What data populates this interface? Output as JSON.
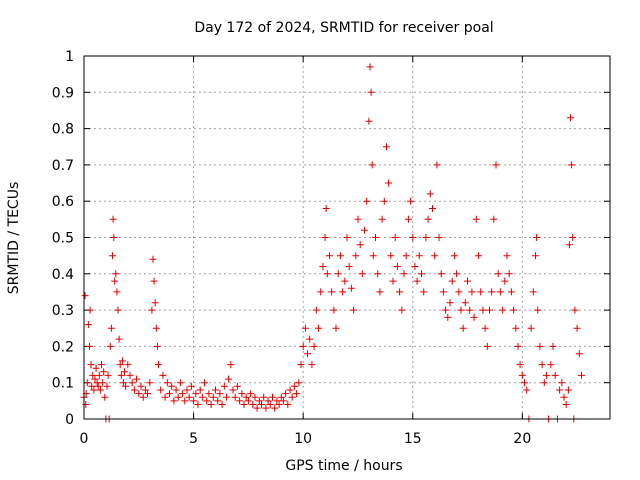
{
  "chart_data": {
    "type": "scatter",
    "title": "Day 172 of 2024, SRMTID for receiver poal",
    "xlabel": "GPS time / hours",
    "ylabel": "SRMTID / TECUs",
    "xlim": [
      0,
      24
    ],
    "ylim": [
      0,
      1
    ],
    "x_ticks": [
      0,
      5,
      10,
      15,
      20
    ],
    "x_tick_labels": [
      "0",
      "5",
      "10",
      "15",
      "20"
    ],
    "y_ticks": [
      0,
      0.1,
      0.2,
      0.3,
      0.4,
      0.5,
      0.6,
      0.7,
      0.8,
      0.9,
      1
    ],
    "y_tick_labels": [
      "0",
      "0.1",
      "0.2",
      "0.3",
      "0.4",
      "0.5",
      "0.6",
      "0.7",
      "0.8",
      "0.9",
      "1"
    ],
    "grid": true,
    "marker": "plus",
    "color": "#e00000",
    "series": [
      {
        "name": "SRMTID",
        "points": [
          [
            0.0,
            0.06
          ],
          [
            0.05,
            0.34
          ],
          [
            0.08,
            0.04
          ],
          [
            0.1,
            0.07
          ],
          [
            0.15,
            0.1
          ],
          [
            0.2,
            0.26
          ],
          [
            0.25,
            0.2
          ],
          [
            0.28,
            0.3
          ],
          [
            0.32,
            0.15
          ],
          [
            0.35,
            0.09
          ],
          [
            0.4,
            0.12
          ],
          [
            0.45,
            0.08
          ],
          [
            0.5,
            0.11
          ],
          [
            0.55,
            0.14
          ],
          [
            0.6,
            0.1
          ],
          [
            0.65,
            0.09
          ],
          [
            0.7,
            0.12
          ],
          [
            0.75,
            0.08
          ],
          [
            0.8,
            0.15
          ],
          [
            0.85,
            0.1
          ],
          [
            0.9,
            0.13
          ],
          [
            0.95,
            0.06
          ],
          [
            1.0,
            0.0
          ],
          [
            1.05,
            0.09
          ],
          [
            1.1,
            0.12
          ],
          [
            1.15,
            0.0
          ],
          [
            1.2,
            0.2
          ],
          [
            1.25,
            0.25
          ],
          [
            1.3,
            0.45
          ],
          [
            1.33,
            0.55
          ],
          [
            1.36,
            0.5
          ],
          [
            1.4,
            0.38
          ],
          [
            1.45,
            0.4
          ],
          [
            1.5,
            0.35
          ],
          [
            1.55,
            0.3
          ],
          [
            1.6,
            0.22
          ],
          [
            1.65,
            0.15
          ],
          [
            1.7,
            0.12
          ],
          [
            1.75,
            0.16
          ],
          [
            1.8,
            0.1
          ],
          [
            1.85,
            0.13
          ],
          [
            1.9,
            0.09
          ],
          [
            2.0,
            0.15
          ],
          [
            2.1,
            0.12
          ],
          [
            2.2,
            0.1
          ],
          [
            2.3,
            0.08
          ],
          [
            2.4,
            0.11
          ],
          [
            2.5,
            0.07
          ],
          [
            2.6,
            0.09
          ],
          [
            2.7,
            0.06
          ],
          [
            2.8,
            0.08
          ],
          [
            2.9,
            0.07
          ],
          [
            3.0,
            0.1
          ],
          [
            3.1,
            0.3
          ],
          [
            3.15,
            0.44
          ],
          [
            3.2,
            0.38
          ],
          [
            3.25,
            0.32
          ],
          [
            3.3,
            0.25
          ],
          [
            3.35,
            0.2
          ],
          [
            3.4,
            0.15
          ],
          [
            3.5,
            0.08
          ],
          [
            3.6,
            0.12
          ],
          [
            3.7,
            0.06
          ],
          [
            3.8,
            0.1
          ],
          [
            3.9,
            0.07
          ],
          [
            4.0,
            0.09
          ],
          [
            4.1,
            0.05
          ],
          [
            4.2,
            0.08
          ],
          [
            4.3,
            0.06
          ],
          [
            4.4,
            0.1
          ],
          [
            4.5,
            0.07
          ],
          [
            4.6,
            0.05
          ],
          [
            4.7,
            0.08
          ],
          [
            4.8,
            0.06
          ],
          [
            4.9,
            0.09
          ],
          [
            5.0,
            0.05
          ],
          [
            5.1,
            0.07
          ],
          [
            5.2,
            0.04
          ],
          [
            5.3,
            0.08
          ],
          [
            5.4,
            0.06
          ],
          [
            5.5,
            0.1
          ],
          [
            5.6,
            0.05
          ],
          [
            5.7,
            0.07
          ],
          [
            5.8,
            0.04
          ],
          [
            5.9,
            0.06
          ],
          [
            6.0,
            0.08
          ],
          [
            6.1,
            0.05
          ],
          [
            6.2,
            0.07
          ],
          [
            6.3,
            0.04
          ],
          [
            6.4,
            0.09
          ],
          [
            6.5,
            0.06
          ],
          [
            6.6,
            0.11
          ],
          [
            6.7,
            0.15
          ],
          [
            6.8,
            0.08
          ],
          [
            6.9,
            0.06
          ],
          [
            7.0,
            0.09
          ],
          [
            7.1,
            0.05
          ],
          [
            7.2,
            0.07
          ],
          [
            7.3,
            0.04
          ],
          [
            7.4,
            0.06
          ],
          [
            7.5,
            0.05
          ],
          [
            7.6,
            0.07
          ],
          [
            7.7,
            0.04
          ],
          [
            7.8,
            0.06
          ],
          [
            7.9,
            0.03
          ],
          [
            8.0,
            0.05
          ],
          [
            8.1,
            0.04
          ],
          [
            8.2,
            0.06
          ],
          [
            8.3,
            0.03
          ],
          [
            8.4,
            0.05
          ],
          [
            8.5,
            0.04
          ],
          [
            8.6,
            0.06
          ],
          [
            8.7,
            0.03
          ],
          [
            8.8,
            0.05
          ],
          [
            8.9,
            0.04
          ],
          [
            9.0,
            0.06
          ],
          [
            9.1,
            0.05
          ],
          [
            9.2,
            0.07
          ],
          [
            9.3,
            0.04
          ],
          [
            9.4,
            0.08
          ],
          [
            9.5,
            0.06
          ],
          [
            9.6,
            0.09
          ],
          [
            9.7,
            0.07
          ],
          [
            9.8,
            0.1
          ],
          [
            9.9,
            0.15
          ],
          [
            10.0,
            0.2
          ],
          [
            10.1,
            0.25
          ],
          [
            10.2,
            0.18
          ],
          [
            10.3,
            0.22
          ],
          [
            10.4,
            0.15
          ],
          [
            10.5,
            0.2
          ],
          [
            10.6,
            0.3
          ],
          [
            10.7,
            0.25
          ],
          [
            10.8,
            0.35
          ],
          [
            10.9,
            0.42
          ],
          [
            11.0,
            0.5
          ],
          [
            11.05,
            0.58
          ],
          [
            11.1,
            0.4
          ],
          [
            11.2,
            0.45
          ],
          [
            11.3,
            0.35
          ],
          [
            11.4,
            0.3
          ],
          [
            11.5,
            0.25
          ],
          [
            11.6,
            0.4
          ],
          [
            11.7,
            0.45
          ],
          [
            11.8,
            0.35
          ],
          [
            11.9,
            0.38
          ],
          [
            12.0,
            0.5
          ],
          [
            12.1,
            0.42
          ],
          [
            12.2,
            0.36
          ],
          [
            12.3,
            0.3
          ],
          [
            12.4,
            0.45
          ],
          [
            12.5,
            0.55
          ],
          [
            12.6,
            0.48
          ],
          [
            12.7,
            0.4
          ],
          [
            12.8,
            0.52
          ],
          [
            12.9,
            0.6
          ],
          [
            13.0,
            0.82
          ],
          [
            13.05,
            0.97
          ],
          [
            13.1,
            0.9
          ],
          [
            13.15,
            0.7
          ],
          [
            13.2,
            0.45
          ],
          [
            13.3,
            0.5
          ],
          [
            13.4,
            0.4
          ],
          [
            13.5,
            0.35
          ],
          [
            13.6,
            0.55
          ],
          [
            13.7,
            0.6
          ],
          [
            13.8,
            0.75
          ],
          [
            13.9,
            0.65
          ],
          [
            14.0,
            0.45
          ],
          [
            14.1,
            0.38
          ],
          [
            14.2,
            0.5
          ],
          [
            14.3,
            0.42
          ],
          [
            14.4,
            0.35
          ],
          [
            14.5,
            0.3
          ],
          [
            14.6,
            0.4
          ],
          [
            14.7,
            0.45
          ],
          [
            14.8,
            0.55
          ],
          [
            14.9,
            0.6
          ],
          [
            15.0,
            0.5
          ],
          [
            15.1,
            0.42
          ],
          [
            15.2,
            0.38
          ],
          [
            15.3,
            0.45
          ],
          [
            15.4,
            0.4
          ],
          [
            15.5,
            0.35
          ],
          [
            15.6,
            0.5
          ],
          [
            15.7,
            0.55
          ],
          [
            15.8,
            0.62
          ],
          [
            15.9,
            0.58
          ],
          [
            16.0,
            0.45
          ],
          [
            16.1,
            0.7
          ],
          [
            16.2,
            0.5
          ],
          [
            16.3,
            0.4
          ],
          [
            16.4,
            0.35
          ],
          [
            16.5,
            0.3
          ],
          [
            16.6,
            0.28
          ],
          [
            16.7,
            0.32
          ],
          [
            16.8,
            0.38
          ],
          [
            16.9,
            0.45
          ],
          [
            17.0,
            0.4
          ],
          [
            17.1,
            0.35
          ],
          [
            17.2,
            0.3
          ],
          [
            17.3,
            0.25
          ],
          [
            17.4,
            0.32
          ],
          [
            17.5,
            0.38
          ],
          [
            17.6,
            0.3
          ],
          [
            17.7,
            0.35
          ],
          [
            17.8,
            0.28
          ],
          [
            17.9,
            0.55
          ],
          [
            18.0,
            0.45
          ],
          [
            18.1,
            0.35
          ],
          [
            18.2,
            0.3
          ],
          [
            18.3,
            0.25
          ],
          [
            18.4,
            0.2
          ],
          [
            18.5,
            0.3
          ],
          [
            18.6,
            0.35
          ],
          [
            18.7,
            0.55
          ],
          [
            18.8,
            0.7
          ],
          [
            18.9,
            0.4
          ],
          [
            19.0,
            0.35
          ],
          [
            19.1,
            0.3
          ],
          [
            19.2,
            0.38
          ],
          [
            19.3,
            0.45
          ],
          [
            19.4,
            0.4
          ],
          [
            19.5,
            0.35
          ],
          [
            19.6,
            0.3
          ],
          [
            19.7,
            0.25
          ],
          [
            19.8,
            0.2
          ],
          [
            19.9,
            0.15
          ],
          [
            20.0,
            0.12
          ],
          [
            20.1,
            0.1
          ],
          [
            20.2,
            0.08
          ],
          [
            20.3,
            0.0
          ],
          [
            20.4,
            0.25
          ],
          [
            20.5,
            0.35
          ],
          [
            20.6,
            0.45
          ],
          [
            20.65,
            0.5
          ],
          [
            20.7,
            0.3
          ],
          [
            20.8,
            0.2
          ],
          [
            20.9,
            0.15
          ],
          [
            21.0,
            0.1
          ],
          [
            21.1,
            0.12
          ],
          [
            21.2,
            0.0
          ],
          [
            21.3,
            0.15
          ],
          [
            21.4,
            0.2
          ],
          [
            21.5,
            0.12
          ],
          [
            21.6,
            0.0
          ],
          [
            21.7,
            0.08
          ],
          [
            21.8,
            0.1
          ],
          [
            21.9,
            0.06
          ],
          [
            22.0,
            0.04
          ],
          [
            22.1,
            0.08
          ],
          [
            22.15,
            0.48
          ],
          [
            22.2,
            0.83
          ],
          [
            22.25,
            0.7
          ],
          [
            22.3,
            0.5
          ],
          [
            22.35,
            0.0
          ],
          [
            22.4,
            0.3
          ],
          [
            22.5,
            0.25
          ],
          [
            22.6,
            0.18
          ],
          [
            22.7,
            0.12
          ]
        ]
      }
    ]
  }
}
